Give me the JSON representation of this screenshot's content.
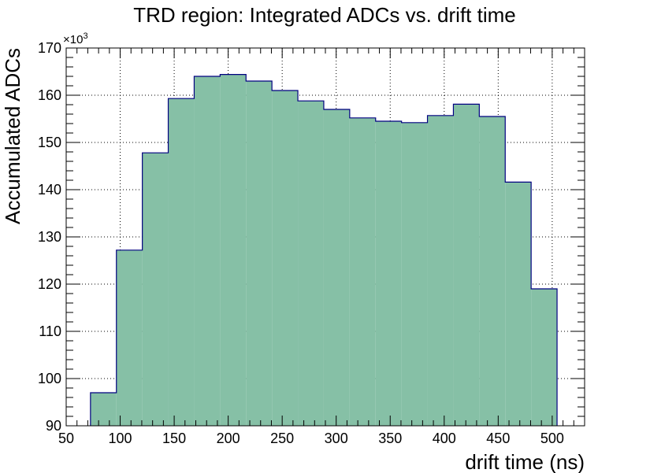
{
  "chart_data": {
    "type": "bar",
    "title": "TRD region: Integrated ADCs vs. drift time",
    "xlabel": "drift time (ns)",
    "ylabel": "Accumulated ADCs",
    "y_multiplier": "×10",
    "y_multiplier_exponent": "3",
    "xlim": [
      50,
      530
    ],
    "ylim": [
      90,
      170
    ],
    "grid": true,
    "x_ticks": [
      "50",
      "100",
      "150",
      "200",
      "250",
      "300",
      "350",
      "400",
      "450",
      "500"
    ],
    "y_ticks": [
      "90",
      "100",
      "110",
      "120",
      "130",
      "140",
      "150",
      "160",
      "170"
    ],
    "bin_edges": [
      72.5,
      96.5,
      120.5,
      144.5,
      168.5,
      192.5,
      216.5,
      240.5,
      264.5,
      288.5,
      312.5,
      336.5,
      360.5,
      384.5,
      408.5,
      432.5,
      456.5,
      480.5,
      504.5
    ],
    "values": [
      97.0,
      127.2,
      147.8,
      159.3,
      164.0,
      164.4,
      163.0,
      161.0,
      158.8,
      157.0,
      155.2,
      154.5,
      154.2,
      155.7,
      158.1,
      155.5,
      141.6,
      119.0
    ],
    "fill_color": "#86c0a6",
    "line_color": "#000080"
  }
}
